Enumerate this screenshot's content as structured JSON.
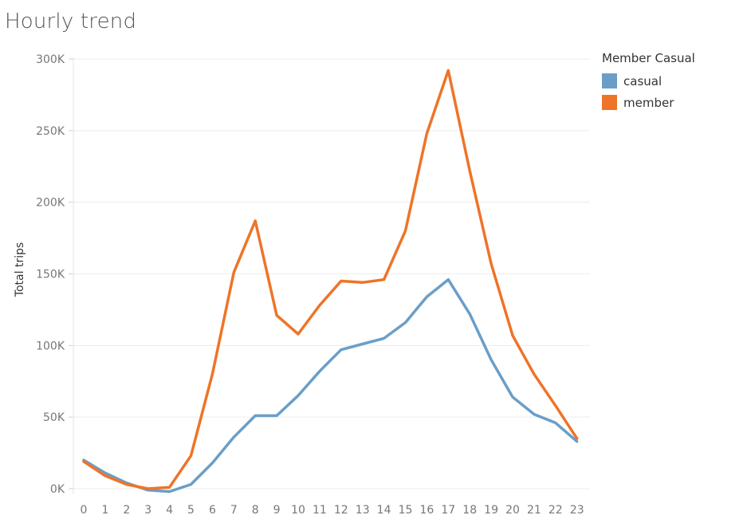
{
  "title": "Hourly trend",
  "legend": {
    "title": "Member Casual",
    "items": [
      {
        "label": "casual",
        "color": "#6a9ec8"
      },
      {
        "label": "member",
        "color": "#ee7428"
      }
    ]
  },
  "chart_data": {
    "type": "line",
    "title": "Hourly trend",
    "xlabel": "",
    "ylabel": "Total trips",
    "x": [
      0,
      1,
      2,
      3,
      4,
      5,
      6,
      7,
      8,
      9,
      10,
      11,
      12,
      13,
      14,
      15,
      16,
      17,
      18,
      19,
      20,
      21,
      22,
      23
    ],
    "x_tick_labels": [
      "0",
      "1",
      "2",
      "3",
      "4",
      "5",
      "6",
      "7",
      "8",
      "9",
      "10",
      "11",
      "12",
      "13",
      "14",
      "15",
      "16",
      "17",
      "18",
      "19",
      "20",
      "21",
      "22",
      "23"
    ],
    "ylim": [
      0,
      300000
    ],
    "y_ticks": [
      0,
      50000,
      100000,
      150000,
      200000,
      250000,
      300000
    ],
    "y_tick_labels": [
      "0K",
      "50K",
      "100K",
      "150K",
      "200K",
      "250K",
      "300K"
    ],
    "grid": true,
    "legend_position": "top-right",
    "series": [
      {
        "name": "casual",
        "color": "#6a9ec8",
        "values": [
          20000,
          11000,
          4000,
          -1000,
          -2000,
          3000,
          18000,
          36000,
          51000,
          51000,
          65000,
          82000,
          97000,
          101000,
          105000,
          116000,
          134000,
          146000,
          122000,
          90000,
          64000,
          52000,
          46000,
          33000
        ]
      },
      {
        "name": "member",
        "color": "#ee7428",
        "values": [
          19000,
          9000,
          3000,
          0,
          1000,
          23000,
          80000,
          151000,
          187000,
          121000,
          108000,
          128000,
          145000,
          144000,
          146000,
          180000,
          248000,
          292000,
          222000,
          157000,
          107000,
          80000,
          58000,
          35000
        ]
      }
    ]
  }
}
